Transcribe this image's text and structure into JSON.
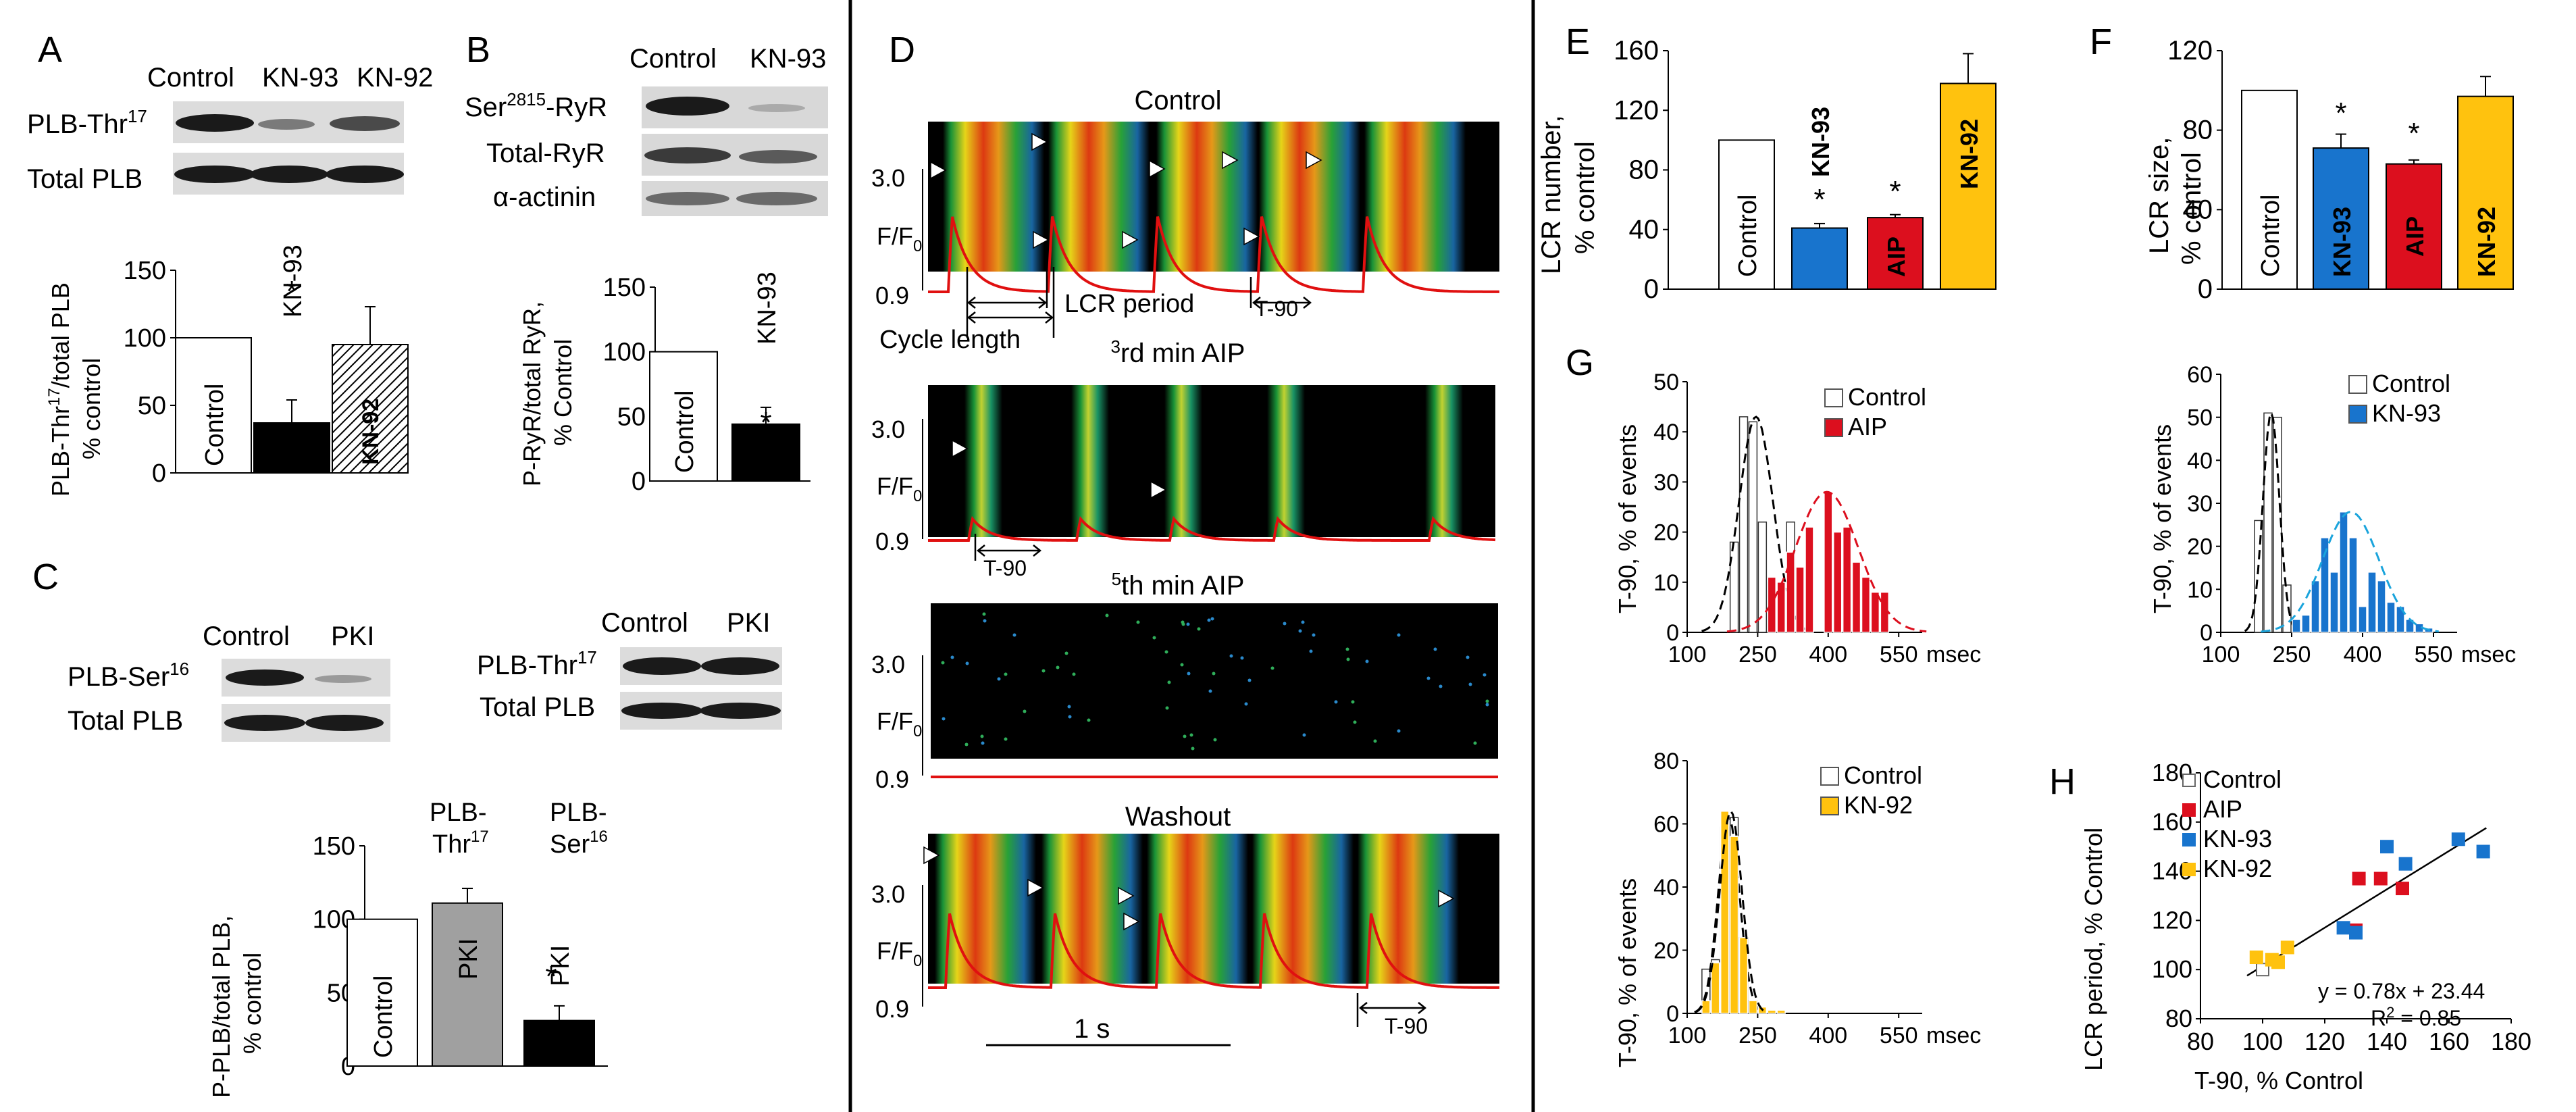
{
  "panels": {
    "A": {
      "letter": "A",
      "blot_cols": [
        "Control",
        "KN-93",
        "KN-92"
      ],
      "row1_main": "PLB-Thr",
      "row1_sup": "17",
      "row2": "Total PLB",
      "ylabel_main": "PLB-Thr",
      "ylabel_sup": "17",
      "ylabel_rest": "/total PLB",
      "ylabel2": "% control",
      "star": "*"
    },
    "B": {
      "letter": "B",
      "blot_cols": [
        "Control",
        "KN-93"
      ],
      "row1_pre": "Ser",
      "row1_sup": "2815",
      "row1_post": "-RyR",
      "row2": "Total-RyR",
      "row3": "α-actinin",
      "ylabel": "P-RyR/total RyR,",
      "ylabel2": "% Control",
      "star": "*"
    },
    "C": {
      "letter": "C",
      "blot1_cols": [
        "Control",
        "PKI"
      ],
      "blot1_row1_main": "PLB-Ser",
      "blot1_row1_sup": "16",
      "blot1_row2": "Total PLB",
      "blot2_cols": [
        "Control",
        "PKI"
      ],
      "blot2_row1_main": "PLB-Thr",
      "blot2_row1_sup": "17",
      "blot2_row2": "Total PLB",
      "group1": "PLB-",
      "group1b_main": "Thr",
      "group1b_sup": "17",
      "group2": "PLB-",
      "group2b_main": "Ser",
      "group2b_sup": "16",
      "ylabel": "P-PLB/total PLB,",
      "ylabel2": "% control",
      "star": "*"
    },
    "D": {
      "letter": "D",
      "titles": [
        "Control",
        "rd min AIP",
        "th min AIP",
        "Washout"
      ],
      "title_prefix": [
        "",
        "3",
        "5",
        ""
      ],
      "y_top": "3.0",
      "y_bottom": "0.9",
      "y_label_main": "F/F",
      "y_label_sub": "0",
      "cycle_length": "Cycle length",
      "lcr_period": "LCR period",
      "t90": "T-90",
      "scalebar": "1 s"
    },
    "E": {
      "letter": "E",
      "ylabel": "LCR number,",
      "ylabel2": "% control",
      "star": "*"
    },
    "F": {
      "letter": "F",
      "ylabel": "LCR size,",
      "ylabel2": "% control",
      "star": "*"
    },
    "G": {
      "letter": "G",
      "ylabel": "T-90, % of events",
      "xunit": "msec"
    },
    "H": {
      "letter": "H",
      "ylabel": "LCR period,  % Control",
      "xlabel": "T-90,  % Control",
      "equation": "y = 0.78x + 23.44",
      "r2_main": "R",
      "r2_sup": "2",
      "r2_rest": " = 0.85"
    }
  },
  "colors": {
    "control": "#ffffff",
    "kn93": "#1874cd",
    "aip": "#dc0f1e",
    "kn92": "#ffc20e",
    "pki": "#a0a0a0",
    "trace": "#e01010"
  },
  "chart_data": [
    {
      "id": "A",
      "type": "bar",
      "categories": [
        "Control",
        "KN-93",
        "KN-92"
      ],
      "values": [
        100,
        37,
        95
      ],
      "errors": [
        0,
        17,
        28
      ],
      "bar_labels": [
        "Control",
        "KN-93",
        "KN-92"
      ],
      "ylim": [
        0,
        150
      ],
      "yticks": [
        "0",
        "50",
        "100",
        "150"
      ]
    },
    {
      "id": "B",
      "type": "bar",
      "categories": [
        "Control",
        "KN-93"
      ],
      "values": [
        100,
        44
      ],
      "errors": [
        0,
        13
      ],
      "bar_labels": [
        "Control",
        "KN-93"
      ],
      "ylim": [
        0,
        150
      ],
      "yticks": [
        "0",
        "50",
        "100",
        "150"
      ]
    },
    {
      "id": "C",
      "type": "bar",
      "categories": [
        "Control",
        "PKI",
        "PKI"
      ],
      "values": [
        100,
        111,
        31
      ],
      "errors": [
        0,
        10,
        10
      ],
      "bar_labels": [
        "Control",
        "PKI",
        "PKI"
      ],
      "ylim": [
        0,
        150
      ],
      "yticks": [
        "0",
        "50",
        "100",
        "150"
      ]
    },
    {
      "id": "E",
      "type": "bar",
      "categories": [
        "Control",
        "KN-93",
        "AIP",
        "KN-92"
      ],
      "values": [
        100,
        41,
        48,
        138
      ],
      "errors": [
        0,
        3,
        2,
        20
      ],
      "bar_labels": [
        "Control",
        "KN-93",
        "AIP",
        "KN-92"
      ],
      "ylim": [
        0,
        160
      ],
      "yticks": [
        "0",
        "40",
        "80",
        "120",
        "160"
      ]
    },
    {
      "id": "F",
      "type": "bar",
      "categories": [
        "Control",
        "KN-93",
        "AIP",
        "KN-92"
      ],
      "values": [
        100,
        71,
        63,
        97
      ],
      "errors": [
        0,
        7,
        2,
        10
      ],
      "bar_labels": [
        "Control",
        "KN-93",
        "AIP",
        "KN-92"
      ],
      "ylim": [
        0,
        120
      ],
      "yticks": [
        "0",
        "40",
        "80",
        "120"
      ]
    },
    {
      "id": "G1",
      "type": "bar",
      "x": [
        160,
        180,
        200,
        220,
        240,
        260,
        280,
        300,
        320,
        340,
        360,
        380,
        400,
        420,
        440,
        460,
        480,
        500,
        520,
        540
      ],
      "series": [
        {
          "name": "Control",
          "values": [
            0,
            0,
            18,
            43,
            42,
            22,
            10,
            0,
            22,
            0,
            0,
            0,
            0,
            0,
            0,
            0,
            0,
            0,
            0,
            0
          ]
        },
        {
          "name": "AIP",
          "values": [
            0,
            0,
            0,
            0,
            0,
            0,
            11,
            10,
            16,
            13,
            21,
            0,
            28,
            20,
            21,
            14,
            11,
            8,
            8,
            0
          ]
        }
      ],
      "xticks": [
        "100",
        "250",
        "400",
        "550"
      ],
      "xlim": [
        100,
        600
      ],
      "ylim": [
        0,
        50
      ],
      "yticks": [
        "0",
        "10",
        "20",
        "30",
        "40",
        "50"
      ]
    },
    {
      "id": "G2",
      "type": "bar",
      "x": [
        160,
        180,
        200,
        220,
        240,
        260,
        280,
        300,
        320,
        340,
        360,
        380,
        400,
        420,
        440,
        460,
        480,
        500,
        520,
        540
      ],
      "series": [
        {
          "name": "Control",
          "values": [
            0,
            26,
            51,
            50,
            11,
            0,
            0,
            0,
            0,
            0,
            0,
            0,
            0,
            0,
            0,
            0,
            0,
            0,
            0,
            0
          ]
        },
        {
          "name": "KN-93",
          "values": [
            0,
            0,
            0,
            0,
            0,
            3,
            4,
            12,
            22,
            14,
            28,
            22,
            6,
            14,
            12,
            7,
            6,
            3,
            2,
            1
          ]
        }
      ],
      "xticks": [
        "100",
        "250",
        "400",
        "550"
      ],
      "xlim": [
        100,
        600
      ],
      "ylim": [
        0,
        60
      ],
      "yticks": [
        "0",
        "10",
        "20",
        "30",
        "40",
        "50",
        "60"
      ]
    },
    {
      "id": "G3",
      "type": "bar",
      "x": [
        120,
        140,
        160,
        180,
        200,
        220,
        240,
        260,
        280,
        300,
        320,
        340
      ],
      "series": [
        {
          "name": "Control",
          "values": [
            0,
            14,
            17,
            59,
            62,
            24,
            4,
            0,
            0,
            0,
            0,
            0
          ]
        },
        {
          "name": "KN-92",
          "values": [
            0,
            4,
            16,
            64,
            56,
            24,
            4,
            2,
            1,
            1,
            0,
            0
          ]
        }
      ],
      "xticks": [
        "100",
        "250",
        "400",
        "550"
      ],
      "xlim": [
        100,
        600
      ],
      "ylim": [
        0,
        80
      ],
      "yticks": [
        "0",
        "20",
        "40",
        "60",
        "80"
      ]
    },
    {
      "id": "H",
      "type": "scatter",
      "series": [
        {
          "name": "Control",
          "points": [
            [
              100,
              100
            ]
          ]
        },
        {
          "name": "AIP",
          "points": [
            [
              131,
              137
            ],
            [
              138,
              137
            ],
            [
              145,
              133
            ],
            [
              130,
              116
            ]
          ]
        },
        {
          "name": "KN-93",
          "points": [
            [
              126,
              117
            ],
            [
              130,
              115
            ],
            [
              140,
              150
            ],
            [
              146,
              143
            ],
            [
              163,
              153
            ],
            [
              171,
              148
            ]
          ]
        },
        {
          "name": "KN-92",
          "points": [
            [
              98,
              105
            ],
            [
              103,
              104
            ],
            [
              105,
              103
            ],
            [
              108,
              109
            ]
          ]
        }
      ],
      "fit": {
        "slope": 0.78,
        "intercept": 23.44
      },
      "xlim": [
        80,
        180
      ],
      "ylim": [
        80,
        180
      ],
      "xticks": [
        "80",
        "100",
        "120",
        "140",
        "160",
        "180"
      ],
      "yticks": [
        "80",
        "100",
        "120",
        "140",
        "160",
        "180"
      ]
    }
  ]
}
